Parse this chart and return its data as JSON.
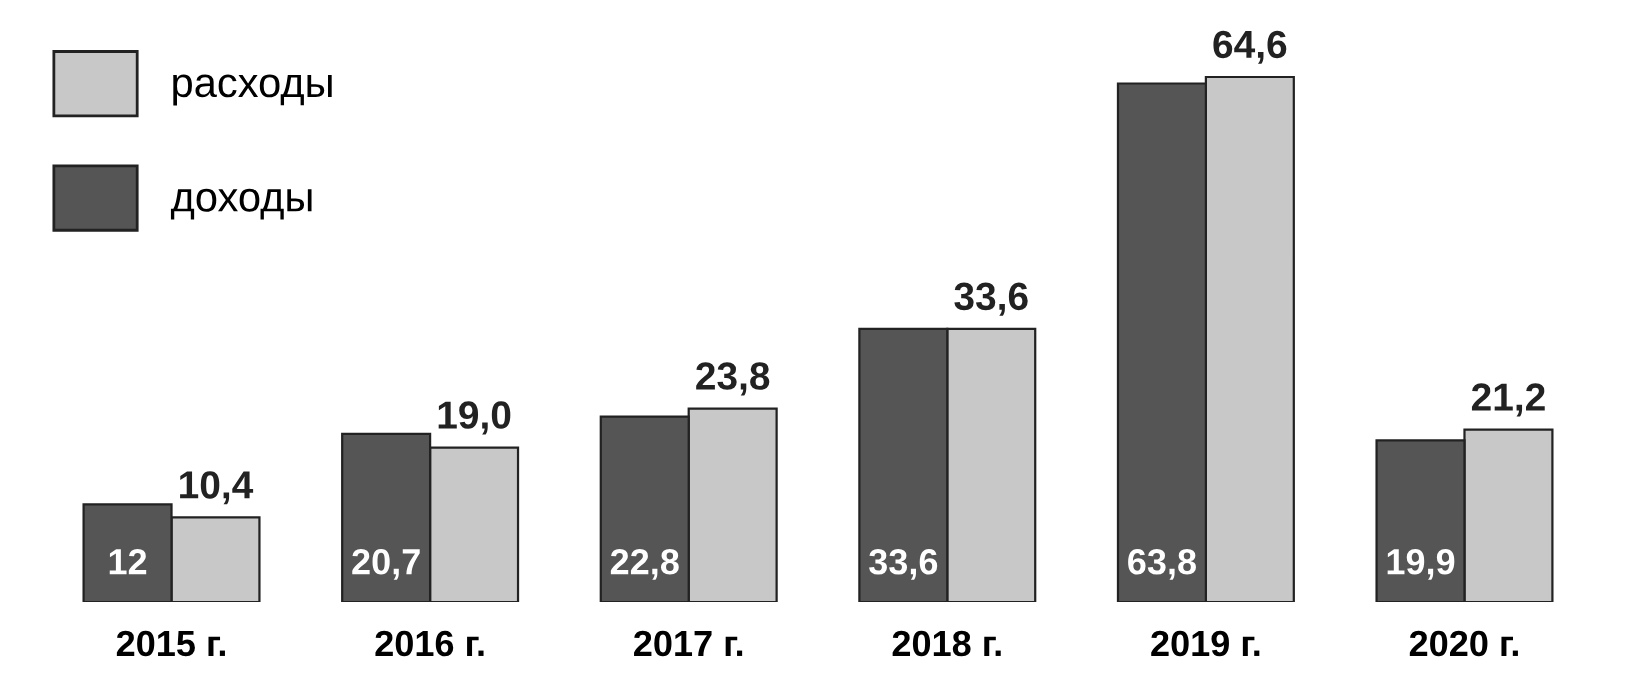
{
  "chart_data": {
    "type": "bar",
    "categories": [
      "2015 г.",
      "2016 г.",
      "2017 г.",
      "2018 г.",
      "2019 г.",
      "2020 г."
    ],
    "series": [
      {
        "name": "доходы",
        "color": "#555555",
        "values": [
          12,
          20.7,
          22.8,
          33.6,
          63.8,
          19.9
        ],
        "value_labels": [
          "12",
          "20,7",
          "22,8",
          "33,6",
          "63,8",
          "19,9"
        ]
      },
      {
        "name": "расходы",
        "color": "#c8c8c8",
        "values": [
          10.4,
          19.0,
          23.8,
          33.6,
          64.6,
          21.2
        ],
        "value_labels": [
          "10,4",
          "19,0",
          "23,8",
          "33,6",
          "64,6",
          "21,2"
        ]
      }
    ],
    "legend": "top left",
    "grid": false
  }
}
